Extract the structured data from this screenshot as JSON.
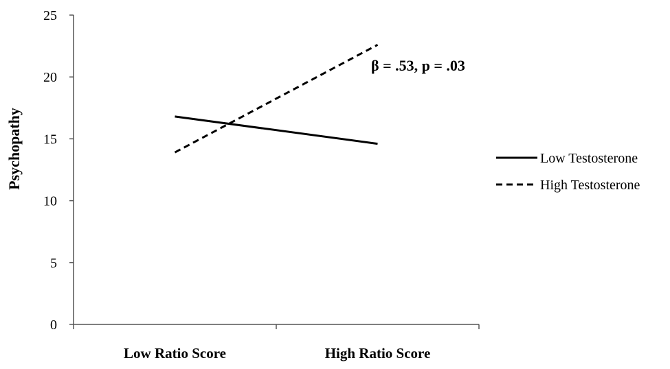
{
  "chart_data": {
    "type": "line",
    "categories": [
      "Low Ratio Score",
      "High Ratio Score"
    ],
    "series": [
      {
        "name": "Low Testosterone",
        "values": [
          16.8,
          14.6
        ],
        "style": "solid",
        "color": "#000000"
      },
      {
        "name": "High Testosterone",
        "values": [
          13.9,
          22.6
        ],
        "style": "dashed",
        "color": "#000000"
      }
    ],
    "title": "",
    "xlabel": "",
    "ylabel": "Psychopathy",
    "ylim": [
      0,
      25
    ],
    "yticks": [
      "0",
      "5",
      "10",
      "15",
      "20",
      "25"
    ],
    "annotation": "β = .53, p = .03",
    "grid": false,
    "legend_position": "right"
  }
}
